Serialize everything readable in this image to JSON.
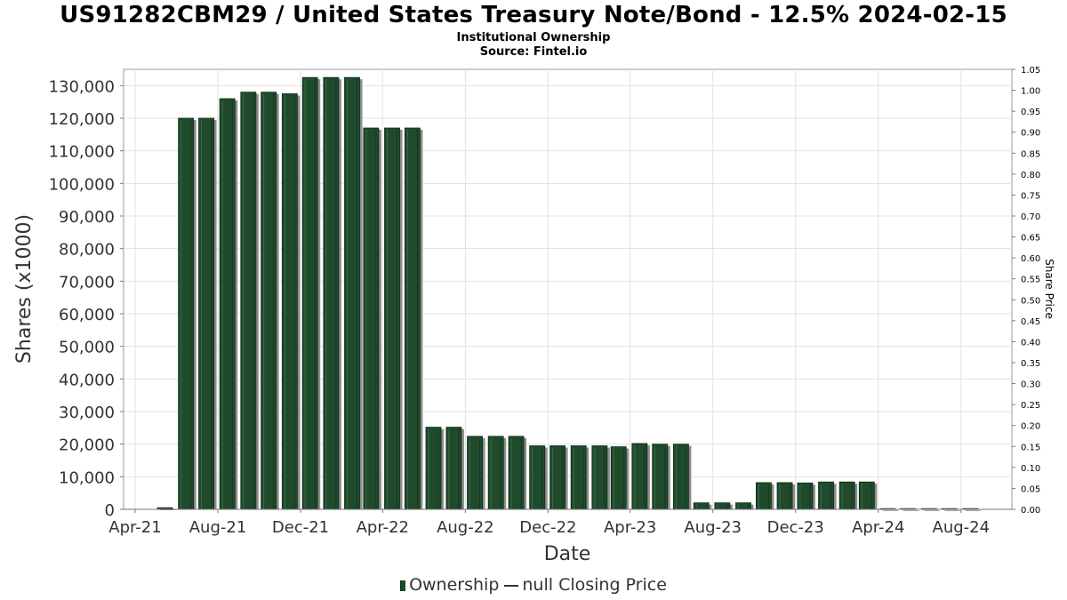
{
  "chart_data": {
    "type": "bar",
    "title": "US91282CBM29 / United States Treasury Note/Bond - 12.5% 2024-02-15",
    "subtitle": [
      "Institutional Ownership",
      "Source: Fintel.io"
    ],
    "xlabel": "Date",
    "ylabel": "Shares (x1000)",
    "y2label": "Share Price",
    "ylim": [
      0,
      135000
    ],
    "y2lim": [
      0,
      1.05
    ],
    "xlim": [
      "2021-03-15",
      "2024-10-15"
    ],
    "yticks": [
      0,
      10000,
      20000,
      30000,
      40000,
      50000,
      60000,
      70000,
      80000,
      90000,
      100000,
      110000,
      120000,
      130000
    ],
    "ytick_labels": [
      "0",
      "10,000",
      "20,000",
      "30,000",
      "40,000",
      "50,000",
      "60,000",
      "70,000",
      "80,000",
      "90,000",
      "100,000",
      "110,000",
      "120,000",
      "130,000"
    ],
    "y2ticks": [
      "0.00",
      "0.05",
      "0.10",
      "0.15",
      "0.20",
      "0.25",
      "0.30",
      "0.35",
      "0.40",
      "0.45",
      "0.50",
      "0.55",
      "0.60",
      "0.65",
      "0.70",
      "0.75",
      "0.80",
      "0.85",
      "0.90",
      "0.95",
      "1.00",
      "1.05"
    ],
    "xticks": [
      {
        "date": "2021-04-01",
        "label": "Apr-21"
      },
      {
        "date": "2021-08-01",
        "label": "Aug-21"
      },
      {
        "date": "2021-12-01",
        "label": "Dec-21"
      },
      {
        "date": "2022-04-01",
        "label": "Apr-22"
      },
      {
        "date": "2022-08-01",
        "label": "Aug-22"
      },
      {
        "date": "2022-12-01",
        "label": "Dec-22"
      },
      {
        "date": "2023-04-01",
        "label": "Apr-23"
      },
      {
        "date": "2023-08-01",
        "label": "Aug-23"
      },
      {
        "date": "2023-12-01",
        "label": "Dec-23"
      },
      {
        "date": "2024-04-01",
        "label": "Apr-24"
      },
      {
        "date": "2024-08-01",
        "label": "Aug-24"
      }
    ],
    "grid": true,
    "legend_position": "bottom-center",
    "series": [
      {
        "name": "Ownership",
        "color": "#1f4a2c",
        "points": [
          {
            "x": "2021-05-15",
            "y": 500
          },
          {
            "x": "2021-06-15",
            "y": 120000
          },
          {
            "x": "2021-07-15",
            "y": 120000
          },
          {
            "x": "2021-08-15",
            "y": 126000
          },
          {
            "x": "2021-09-15",
            "y": 128000
          },
          {
            "x": "2021-10-15",
            "y": 128000
          },
          {
            "x": "2021-11-15",
            "y": 127500
          },
          {
            "x": "2021-12-15",
            "y": 132500
          },
          {
            "x": "2022-01-15",
            "y": 132500
          },
          {
            "x": "2022-02-15",
            "y": 132500
          },
          {
            "x": "2022-03-15",
            "y": 117000
          },
          {
            "x": "2022-04-15",
            "y": 117000
          },
          {
            "x": "2022-05-15",
            "y": 117000
          },
          {
            "x": "2022-06-15",
            "y": 25200
          },
          {
            "x": "2022-07-15",
            "y": 25200
          },
          {
            "x": "2022-08-15",
            "y": 22400
          },
          {
            "x": "2022-09-15",
            "y": 22400
          },
          {
            "x": "2022-10-15",
            "y": 22400
          },
          {
            "x": "2022-11-15",
            "y": 19500
          },
          {
            "x": "2022-12-15",
            "y": 19500
          },
          {
            "x": "2023-01-15",
            "y": 19500
          },
          {
            "x": "2023-02-15",
            "y": 19500
          },
          {
            "x": "2023-03-15",
            "y": 19200
          },
          {
            "x": "2023-04-15",
            "y": 20200
          },
          {
            "x": "2023-05-15",
            "y": 20000
          },
          {
            "x": "2023-06-15",
            "y": 20000
          },
          {
            "x": "2023-07-15",
            "y": 2000
          },
          {
            "x": "2023-08-15",
            "y": 2000
          },
          {
            "x": "2023-09-15",
            "y": 2000
          },
          {
            "x": "2023-10-15",
            "y": 8200
          },
          {
            "x": "2023-11-15",
            "y": 8200
          },
          {
            "x": "2023-12-15",
            "y": 8100
          },
          {
            "x": "2024-01-15",
            "y": 8400
          },
          {
            "x": "2024-02-15",
            "y": 8400
          },
          {
            "x": "2024-03-15",
            "y": 8400
          },
          {
            "x": "2024-04-15",
            "y": 200
          },
          {
            "x": "2024-05-15",
            "y": 200
          },
          {
            "x": "2024-06-15",
            "y": 200
          },
          {
            "x": "2024-07-15",
            "y": 200
          },
          {
            "x": "2024-08-15",
            "y": 200
          }
        ]
      }
    ],
    "legend": {
      "bar_label": "Ownership",
      "line_label": "null Closing Price"
    }
  }
}
